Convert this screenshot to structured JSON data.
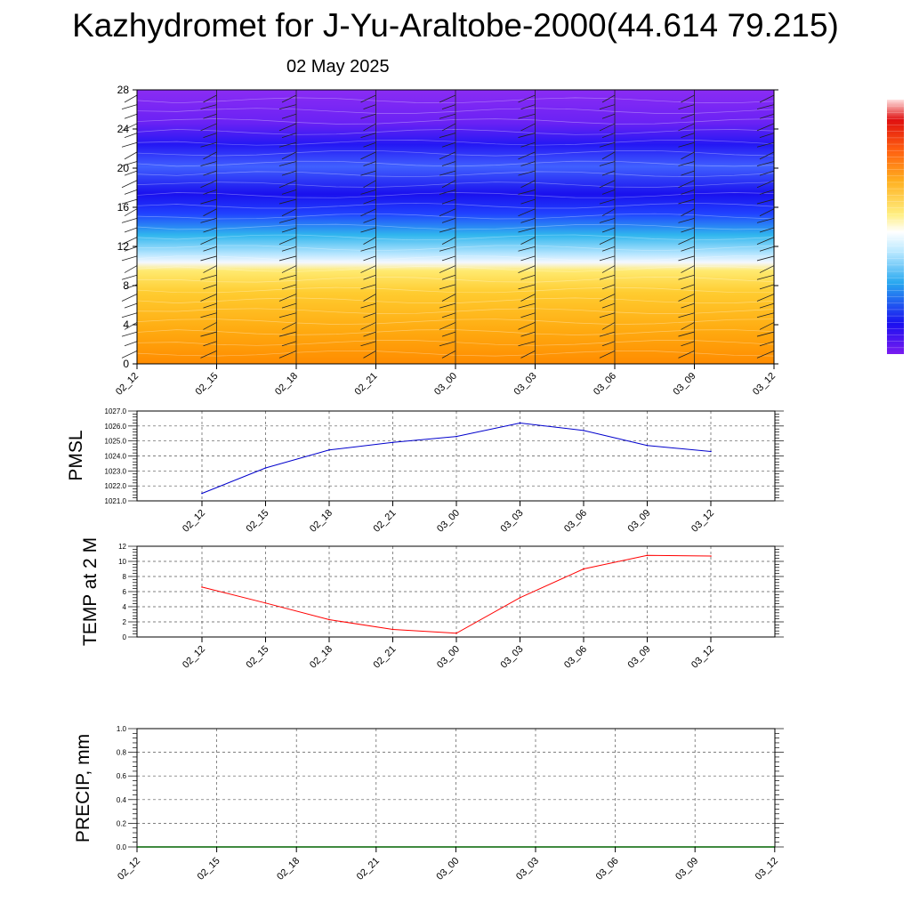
{
  "header": {
    "title": "Kazhydromet for J-Yu-Araltobe-2000(44.614 79.215)",
    "date": "02 May 2025"
  },
  "time_labels": [
    "02_12",
    "02_15",
    "02_18",
    "02_21",
    "03_00",
    "03_03",
    "03_06",
    "03_09",
    "03_12"
  ],
  "chart_data": [
    {
      "type": "heatmap",
      "name_hint": "vertical cross-section with wind barbs",
      "x": [
        "02_12",
        "02_15",
        "02_18",
        "02_21",
        "03_00",
        "03_03",
        "03_06",
        "03_09",
        "03_12"
      ],
      "yticks": [
        0,
        4,
        8,
        12,
        16,
        20,
        24,
        28
      ],
      "ylim": [
        0,
        28
      ],
      "colorbar": true
    },
    {
      "type": "line",
      "ylabel": "PMSL",
      "x": [
        "02_12",
        "02_15",
        "02_18",
        "02_21",
        "03_00",
        "03_03",
        "03_06",
        "03_09",
        "03_12"
      ],
      "values": [
        1021.5,
        1023.2,
        1024.4,
        1024.9,
        1025.3,
        1026.2,
        1025.7,
        1024.7,
        1024.3
      ],
      "ylim": [
        1021.0,
        1027.0
      ],
      "yticks": [
        "1021.0",
        "1022.0",
        "1023.0",
        "1024.0",
        "1025.0",
        "1026.0",
        "1027.0"
      ],
      "color": "#0000cc",
      "grid": true
    },
    {
      "type": "line",
      "ylabel": "TEMP at 2 M",
      "x": [
        "02_12",
        "02_15",
        "02_18",
        "02_21",
        "03_00",
        "03_03",
        "03_06",
        "03_09",
        "03_12"
      ],
      "values": [
        6.6,
        4.5,
        2.3,
        1.0,
        0.5,
        5.2,
        9.0,
        10.8,
        10.7
      ],
      "ylim": [
        0,
        12
      ],
      "yticks": [
        "0",
        "2",
        "4",
        "6",
        "8",
        "10",
        "12"
      ],
      "color": "#ff0000",
      "grid": true
    },
    {
      "type": "line",
      "ylabel": "PRECIP, mm",
      "x": [
        "02_12",
        "02_15",
        "02_18",
        "02_21",
        "03_00",
        "03_03",
        "03_06",
        "03_09",
        "03_12"
      ],
      "values": [
        0,
        0,
        0,
        0,
        0,
        0,
        0,
        0,
        0
      ],
      "ylim": [
        0.0,
        1.0
      ],
      "yticks": [
        "0.0",
        "0.2",
        "0.4",
        "0.6",
        "0.8",
        "1.0"
      ],
      "color": "#006400",
      "grid": true
    }
  ]
}
